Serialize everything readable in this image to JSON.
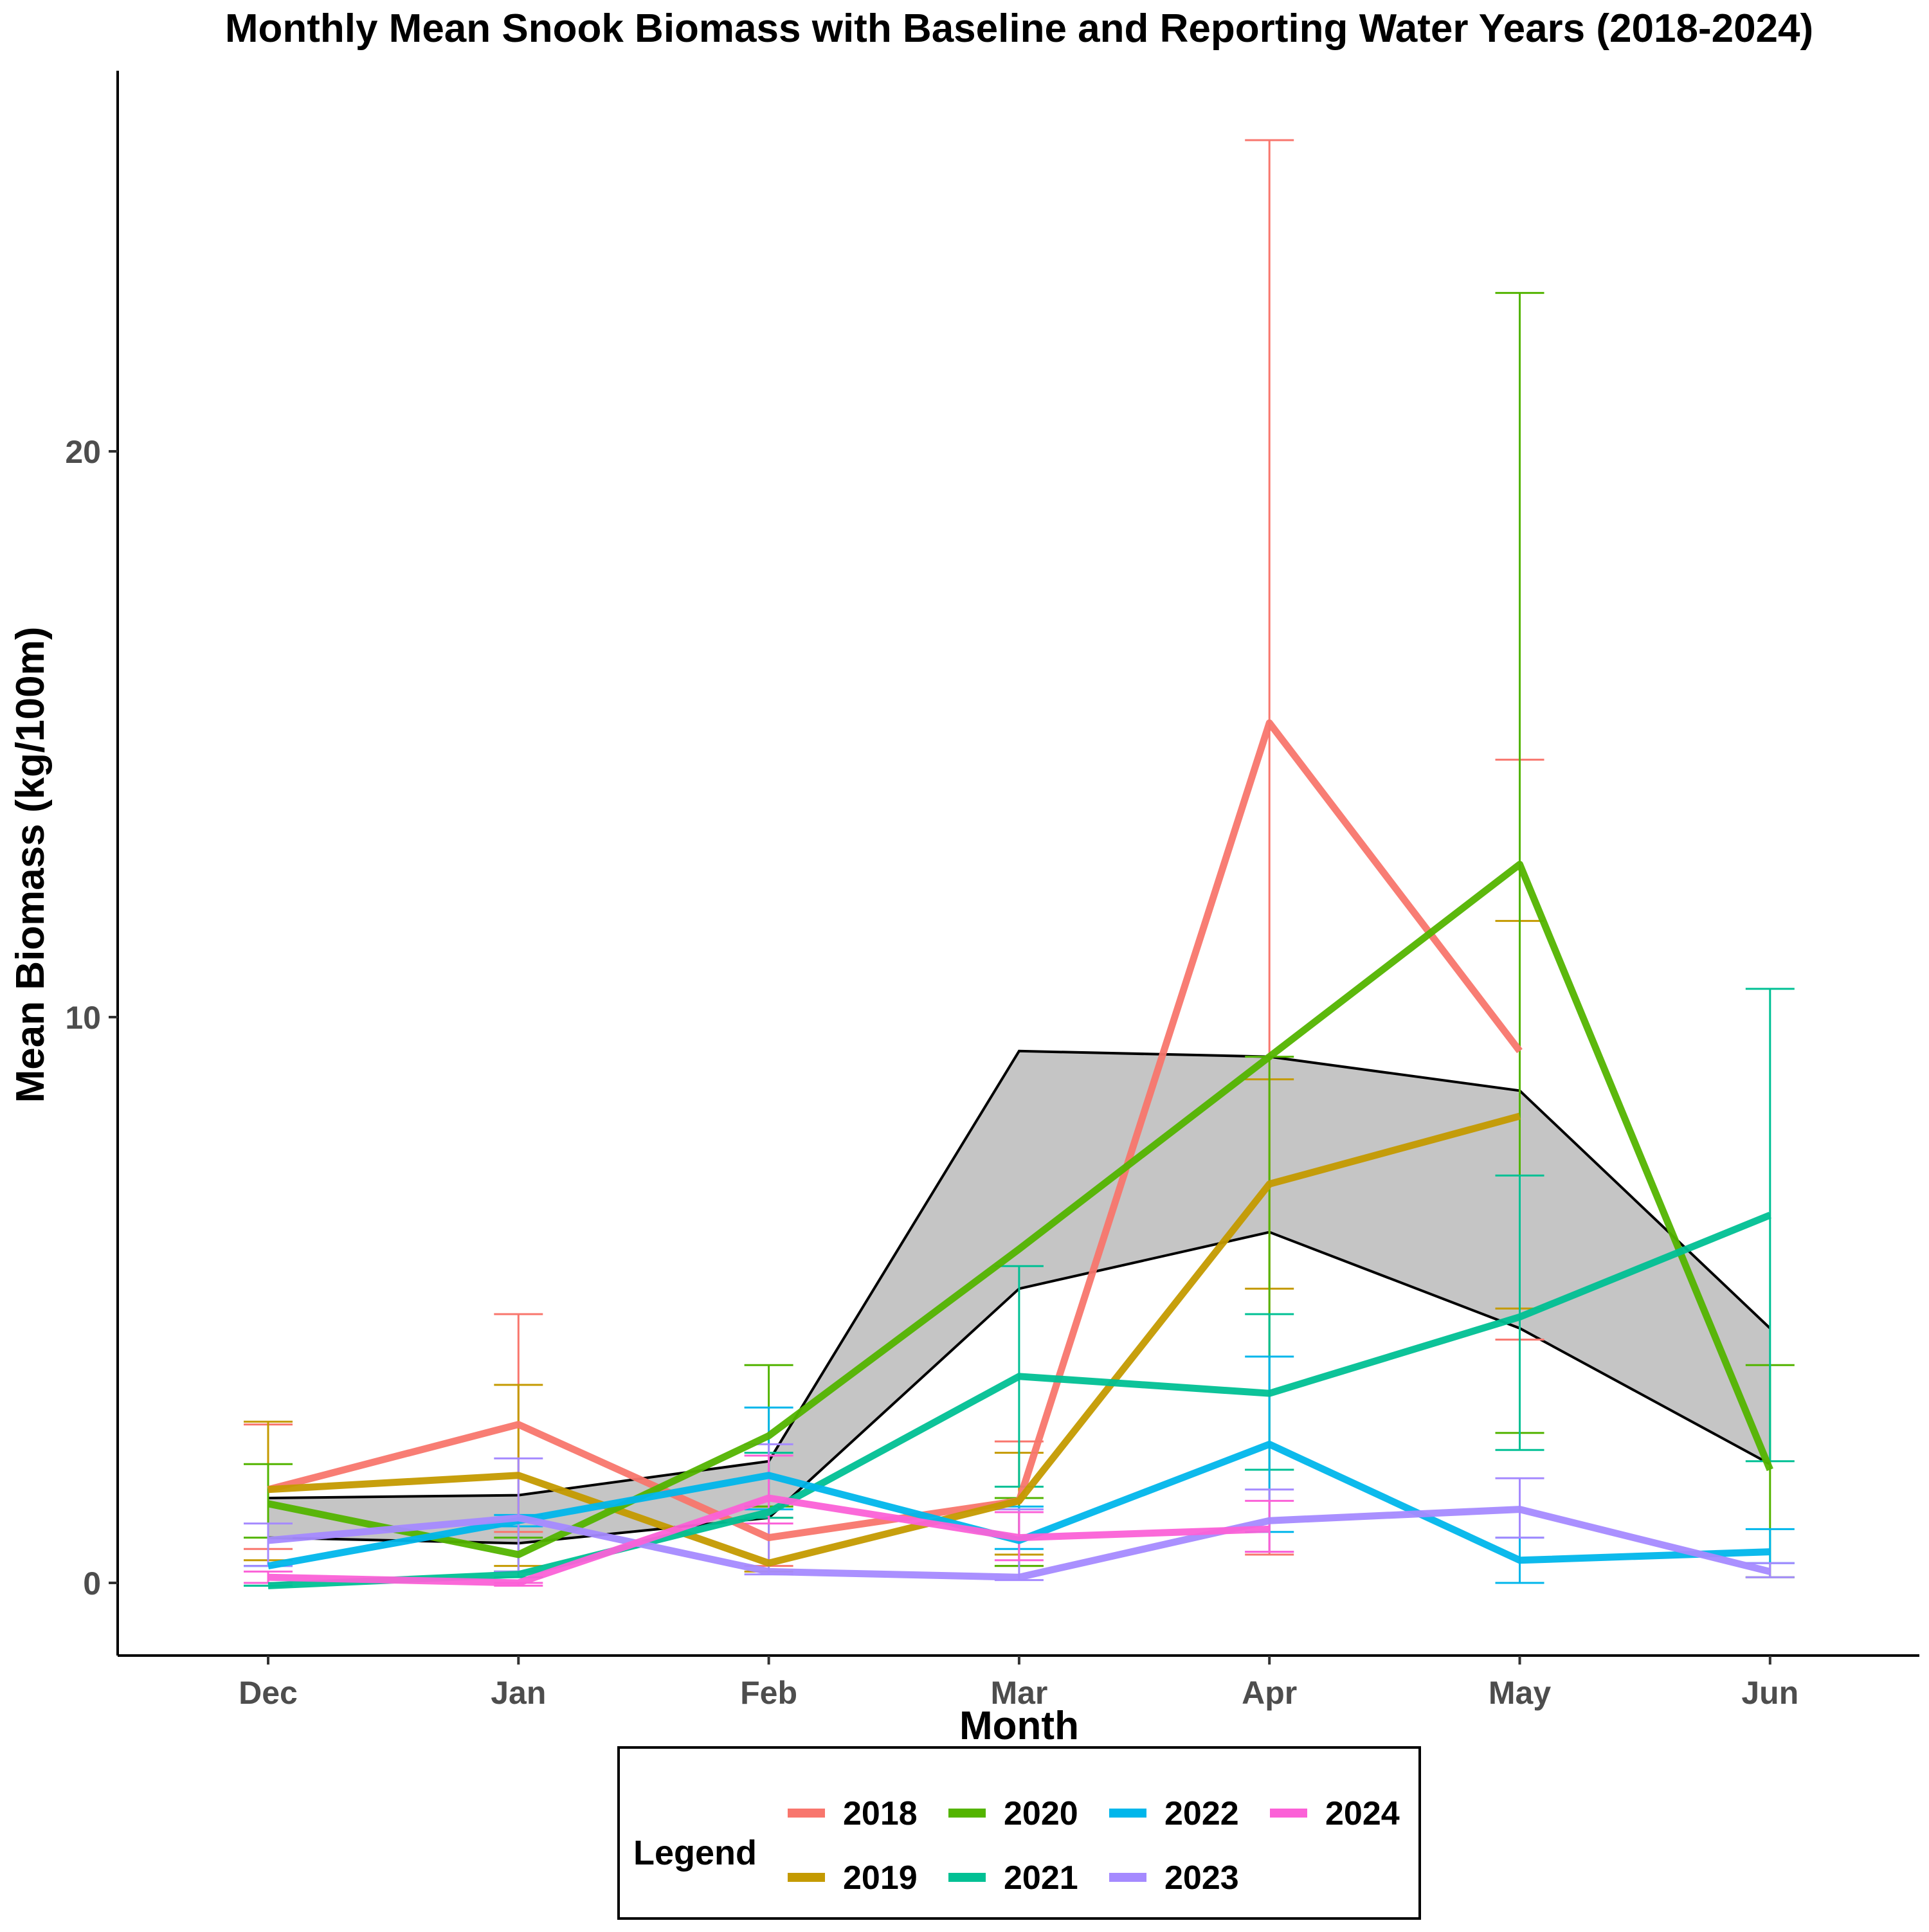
{
  "chart_data": {
    "type": "line",
    "title": "Monthly Mean Snook Biomass with Baseline and Reporting Water Years (2018-2024)",
    "xlabel": "Month",
    "ylabel": "Mean Biomass (kg/100m)",
    "categories": [
      "Dec",
      "Jan",
      "Feb",
      "Mar",
      "Apr",
      "May",
      "Jun"
    ],
    "ylim": [
      -1.25,
      26.75
    ],
    "yticks": [
      0,
      10,
      20
    ],
    "grid": false,
    "legend": {
      "title": "Legend",
      "position": "bottom",
      "entries": [
        "2018",
        "2019",
        "2020",
        "2021",
        "2022",
        "2023",
        "2024"
      ]
    },
    "baseline_band": {
      "color": "#bfbfbf",
      "lower": [
        0.8,
        0.7,
        1.15,
        5.2,
        6.2,
        4.5,
        2.1
      ],
      "upper": [
        1.5,
        1.55,
        2.15,
        9.4,
        9.3,
        8.7,
        4.5
      ]
    },
    "series": [
      {
        "name": "2018",
        "color": "#F8766D",
        "values": [
          1.65,
          2.8,
          0.8,
          1.45,
          15.2,
          9.4,
          null
        ],
        "err_low": [
          0.6,
          0.9,
          0.3,
          0.3,
          0.5,
          4.3,
          null
        ],
        "err_high": [
          2.8,
          4.75,
          1.15,
          2.5,
          25.5,
          14.55,
          null
        ]
      },
      {
        "name": "2019",
        "color": "#C49A00",
        "values": [
          1.65,
          1.9,
          0.35,
          1.45,
          7.05,
          8.25,
          null
        ],
        "err_low": [
          0.4,
          0.3,
          0.2,
          0.5,
          5.2,
          4.85,
          null
        ],
        "err_high": [
          2.85,
          3.5,
          1.35,
          2.3,
          8.9,
          11.7,
          null
        ]
      },
      {
        "name": "2020",
        "color": "#53B400",
        "values": [
          1.4,
          0.5,
          2.6,
          5.9,
          9.3,
          12.7,
          2.0
        ],
        "err_low": [
          0.8,
          0.2,
          1.35,
          0.3,
          2.0,
          2.65,
          0.1
        ],
        "err_high": [
          2.1,
          0.8,
          3.85,
          1.5,
          9.3,
          22.8,
          3.85
        ]
      },
      {
        "name": "2021",
        "color": "#00C094",
        "values": [
          -0.05,
          0.15,
          1.25,
          3.65,
          3.35,
          4.7,
          6.5
        ],
        "err_low": [
          -0.05,
          0.1,
          1.15,
          1.7,
          2.0,
          2.35,
          2.15
        ],
        "err_high": [
          -0.05,
          0.2,
          2.3,
          5.6,
          4.75,
          7.2,
          10.5
        ]
      },
      {
        "name": "2022",
        "color": "#00B6EB",
        "values": [
          0.3,
          1.1,
          1.9,
          0.75,
          2.45,
          0.4,
          0.55
        ],
        "err_low": [
          0.3,
          1.0,
          1.3,
          0.6,
          0.9,
          0.0,
          0.35
        ],
        "err_high": [
          0.3,
          1.2,
          3.1,
          1.35,
          4.0,
          0.8,
          0.95
        ]
      },
      {
        "name": "2023",
        "color": "#A58AFF",
        "values": [
          0.75,
          1.15,
          0.2,
          0.1,
          1.1,
          1.3,
          0.2
        ],
        "err_low": [
          0.3,
          0.2,
          0.15,
          0.05,
          0.55,
          0.8,
          0.1
        ],
        "err_high": [
          1.05,
          2.2,
          2.45,
          1.3,
          1.65,
          1.85,
          0.35
        ]
      },
      {
        "name": "2024",
        "color": "#FB61D7",
        "values": [
          0.1,
          0.0,
          1.5,
          0.8,
          0.95,
          null,
          null
        ],
        "err_low": [
          0.0,
          -0.05,
          1.05,
          0.4,
          0.55,
          null,
          null
        ],
        "err_high": [
          0.2,
          0.0,
          2.25,
          1.25,
          1.45,
          null,
          null
        ]
      }
    ]
  }
}
